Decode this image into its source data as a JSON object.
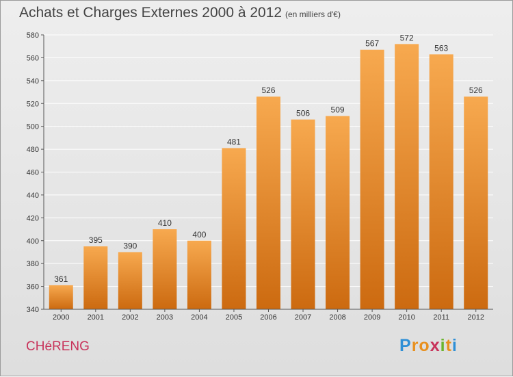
{
  "title": "Achats et Charges Externes 2000 à 2012",
  "subtitle": "(en milliers d'€)",
  "commune": "CHéRENG",
  "logo": {
    "letters": [
      "P",
      "r",
      "o",
      "x",
      "i",
      "t",
      "i"
    ],
    "colors": [
      "#2e8fd6",
      "#e8901e",
      "#e8901e",
      "#c8325a",
      "#6ab42d",
      "#e8901e",
      "#2e8fd6"
    ]
  },
  "colors": {
    "bar_top": "#f7a94f",
    "bar_bottom": "#cc6a10",
    "grid": "#ffffff",
    "commune_text": "#c8325a"
  },
  "chart_data": {
    "type": "bar",
    "categories": [
      "2000",
      "2001",
      "2002",
      "2003",
      "2004",
      "2005",
      "2006",
      "2007",
      "2008",
      "2009",
      "2010",
      "2011",
      "2012"
    ],
    "values": [
      361,
      395,
      390,
      410,
      400,
      481,
      526,
      506,
      509,
      567,
      572,
      563,
      526
    ],
    "data_labels": [
      "361",
      "395",
      "390",
      "410",
      "400",
      "481",
      "526",
      "506",
      "509",
      "567",
      "572",
      "563",
      "526"
    ],
    "title": "Achats et Charges Externes 2000 à 2012",
    "xlabel": "",
    "ylabel": "",
    "ylim": [
      340,
      580
    ],
    "yticks": [
      340,
      360,
      380,
      400,
      420,
      440,
      460,
      480,
      500,
      520,
      540,
      560,
      580
    ],
    "ytick_labels": [
      "340",
      "360",
      "380",
      "400",
      "420",
      "440",
      "460",
      "480",
      "500",
      "520",
      "540",
      "560",
      "580"
    ],
    "grid": true,
    "legend": "none"
  }
}
